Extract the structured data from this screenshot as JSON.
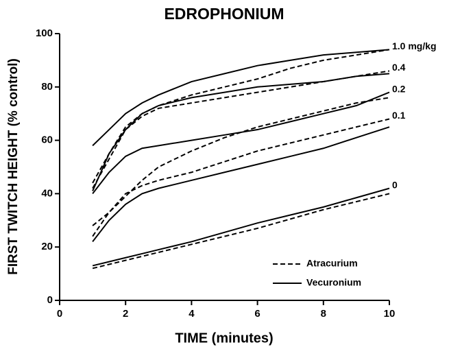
{
  "chart_data": {
    "type": "line",
    "title": "EDROPHONIUM",
    "xlabel": "TIME (minutes)",
    "ylabel": "FIRST TWITCH HEIGHT (% control)",
    "x": [
      1,
      1.5,
      2,
      2.5,
      3,
      4,
      5,
      6,
      7,
      8,
      9,
      10
    ],
    "xlim": [
      0,
      10
    ],
    "xticks": [
      0,
      2,
      4,
      6,
      8,
      10
    ],
    "ylim": [
      0,
      100
    ],
    "yticks": [
      0,
      20,
      40,
      60,
      80,
      100
    ],
    "color": "#000000",
    "legend": [
      {
        "label": "Atracurium",
        "style": "dashed"
      },
      {
        "label": "Vecuronium",
        "style": "solid"
      }
    ],
    "series": [
      {
        "name": "1.0 mg/kg",
        "lines": [
          {
            "style": "dashed",
            "values": [
              44,
              55,
              65,
              70,
              73,
              77,
              80,
              83,
              87,
              90,
              92,
              94
            ]
          },
          {
            "style": "solid",
            "values": [
              58,
              64,
              70,
              74,
              77,
              82,
              85,
              88,
              90,
              92,
              93,
              94
            ]
          }
        ]
      },
      {
        "name": "0.4",
        "lines": [
          {
            "style": "dashed",
            "values": [
              42,
              53,
              64,
              69,
              72,
              74,
              76,
              78,
              80,
              82,
              84,
              86
            ]
          },
          {
            "style": "solid",
            "values": [
              41,
              55,
              64,
              70,
              73,
              76,
              78,
              80,
              81,
              82,
              84,
              85
            ]
          }
        ]
      },
      {
        "name": "0.2",
        "lines": [
          {
            "style": "dashed",
            "values": [
              28,
              33,
              39,
              45,
              50,
              56,
              61,
              65,
              68,
              71,
              74,
              76
            ]
          },
          {
            "style": "solid",
            "values": [
              40,
              48,
              54,
              57,
              58,
              60,
              62,
              64,
              67,
              70,
              73,
              78
            ]
          }
        ]
      },
      {
        "name": "0.1",
        "lines": [
          {
            "style": "dashed",
            "values": [
              24,
              33,
              40,
              43,
              45,
              48,
              52,
              56,
              59,
              62,
              65,
              68
            ]
          },
          {
            "style": "solid",
            "values": [
              22,
              30,
              36,
              40,
              42,
              45,
              48,
              51,
              54,
              57,
              61,
              65
            ]
          }
        ]
      },
      {
        "name": "0",
        "lines": [
          {
            "style": "dashed",
            "values": [
              12,
              13.5,
              15,
              16.5,
              18,
              21,
              24,
              27,
              30.5,
              34,
              37,
              40
            ]
          },
          {
            "style": "solid",
            "values": [
              13,
              14.5,
              16,
              17.5,
              19,
              22,
              25.5,
              29,
              32,
              35,
              38.5,
              42
            ]
          }
        ]
      }
    ]
  }
}
